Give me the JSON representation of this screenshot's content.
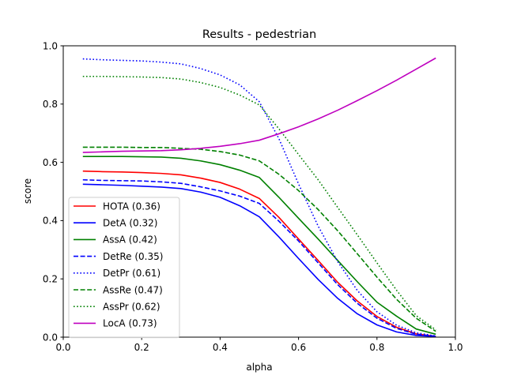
{
  "chart_data": {
    "type": "line",
    "title": "Results - pedestrian",
    "xlabel": "alpha",
    "ylabel": "score",
    "xlim": [
      0.0,
      1.0
    ],
    "ylim": [
      0.0,
      1.0
    ],
    "xticks": [
      "0.0",
      "0.2",
      "0.4",
      "0.6",
      "0.8",
      "1.0"
    ],
    "yticks": [
      "0.0",
      "0.2",
      "0.4",
      "0.6",
      "0.8",
      "1.0"
    ],
    "grid": false,
    "legend_position": "lower-left",
    "x": [
      0.05,
      0.1,
      0.15,
      0.2,
      0.25,
      0.3,
      0.35,
      0.4,
      0.45,
      0.5,
      0.55,
      0.6,
      0.65,
      0.7,
      0.75,
      0.8,
      0.85,
      0.9,
      0.95
    ],
    "series": [
      {
        "name": "HOTA (0.36)",
        "color": "#ff0000",
        "style": "solid",
        "values": [
          0.57,
          0.568,
          0.567,
          0.565,
          0.562,
          0.557,
          0.546,
          0.531,
          0.508,
          0.476,
          0.411,
          0.337,
          0.263,
          0.188,
          0.124,
          0.071,
          0.034,
          0.011,
          0.003
        ]
      },
      {
        "name": "DetA (0.32)",
        "color": "#0000ff",
        "style": "solid",
        "values": [
          0.525,
          0.523,
          0.521,
          0.518,
          0.515,
          0.51,
          0.498,
          0.48,
          0.451,
          0.413,
          0.344,
          0.27,
          0.198,
          0.133,
          0.08,
          0.042,
          0.018,
          0.006,
          0.002
        ]
      },
      {
        "name": "AssA (0.42)",
        "color": "#008000",
        "style": "solid",
        "values": [
          0.62,
          0.62,
          0.62,
          0.619,
          0.618,
          0.614,
          0.605,
          0.592,
          0.573,
          0.548,
          0.48,
          0.408,
          0.337,
          0.263,
          0.19,
          0.12,
          0.072,
          0.028,
          0.01
        ]
      },
      {
        "name": "DetRe (0.35)",
        "color": "#0000ff",
        "style": "dashed",
        "values": [
          0.54,
          0.538,
          0.537,
          0.536,
          0.533,
          0.528,
          0.516,
          0.502,
          0.484,
          0.459,
          0.398,
          0.33,
          0.255,
          0.18,
          0.116,
          0.065,
          0.03,
          0.01,
          0.003
        ]
      },
      {
        "name": "DetPr (0.61)",
        "color": "#0000ff",
        "style": "dotted",
        "values": [
          0.955,
          0.952,
          0.95,
          0.948,
          0.944,
          0.938,
          0.922,
          0.9,
          0.866,
          0.808,
          0.681,
          0.526,
          0.381,
          0.259,
          0.16,
          0.087,
          0.041,
          0.015,
          0.004
        ]
      },
      {
        "name": "AssRe (0.47)",
        "color": "#008000",
        "style": "dashed",
        "values": [
          0.652,
          0.652,
          0.652,
          0.651,
          0.651,
          0.648,
          0.645,
          0.637,
          0.625,
          0.605,
          0.559,
          0.503,
          0.438,
          0.365,
          0.286,
          0.206,
          0.13,
          0.065,
          0.02
        ]
      },
      {
        "name": "AssPr (0.62)",
        "color": "#008000",
        "style": "dotted",
        "values": [
          0.895,
          0.895,
          0.894,
          0.893,
          0.891,
          0.886,
          0.874,
          0.857,
          0.831,
          0.797,
          0.715,
          0.627,
          0.54,
          0.445,
          0.351,
          0.255,
          0.161,
          0.074,
          0.025
        ]
      },
      {
        "name": "LocA (0.73)",
        "color": "#bf00bf",
        "style": "solid",
        "values": [
          0.634,
          0.636,
          0.638,
          0.639,
          0.64,
          0.643,
          0.648,
          0.655,
          0.664,
          0.676,
          0.698,
          0.722,
          0.749,
          0.779,
          0.812,
          0.846,
          0.882,
          0.92,
          0.958
        ]
      }
    ]
  }
}
